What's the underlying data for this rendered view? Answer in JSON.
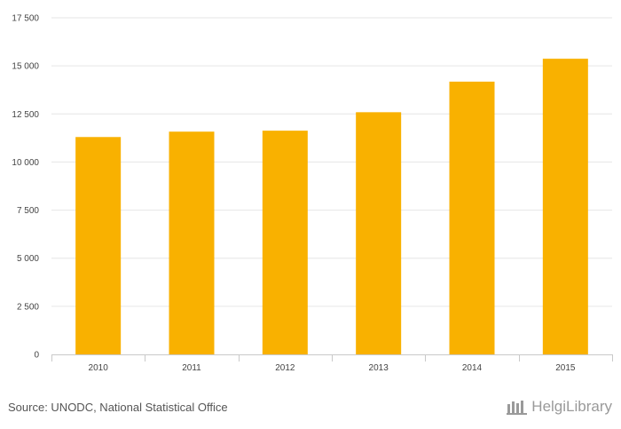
{
  "chart_data": {
    "type": "bar",
    "categories": [
      "2010",
      "2011",
      "2012",
      "2013",
      "2014",
      "2015"
    ],
    "values": [
      11300,
      11580,
      11630,
      12590,
      14180,
      15370
    ],
    "ylim": [
      0,
      17500
    ],
    "yticks": [
      0,
      2500,
      5000,
      7500,
      10000,
      12500,
      15000,
      17500
    ],
    "ytick_labels": [
      "0",
      "2 500",
      "5 000",
      "7 500",
      "10 000",
      "12 500",
      "15 000",
      "17 500"
    ],
    "grid": true,
    "bar_color": "#f9b100"
  },
  "footer": {
    "source": "Source: UNODC, National Statistical Office",
    "brand": "HelgiLibrary"
  },
  "colors": {
    "grid": "#e6e6e6",
    "axis": "#c9c9c9",
    "brand": "#9a9a9a"
  }
}
